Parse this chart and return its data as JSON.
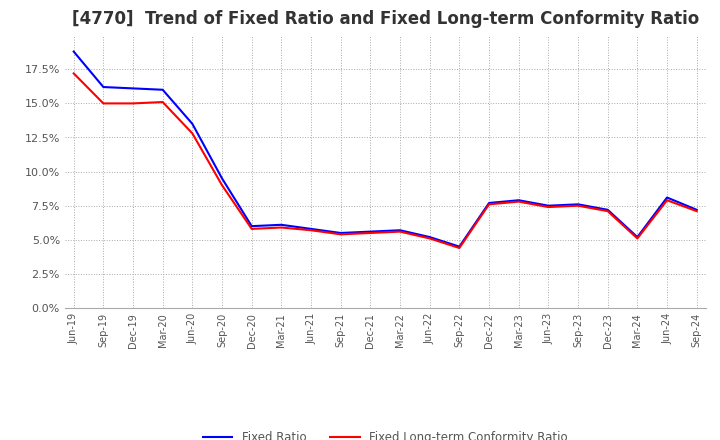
{
  "title": "[4770]  Trend of Fixed Ratio and Fixed Long-term Conformity Ratio",
  "title_fontsize": 12,
  "background_color": "#ffffff",
  "plot_background_color": "#ffffff",
  "grid_color": "#aaaaaa",
  "x_labels": [
    "Jun-19",
    "Sep-19",
    "Dec-19",
    "Mar-20",
    "Jun-20",
    "Sep-20",
    "Dec-20",
    "Mar-21",
    "Jun-21",
    "Sep-21",
    "Dec-21",
    "Mar-22",
    "Jun-22",
    "Sep-22",
    "Dec-22",
    "Mar-23",
    "Jun-23",
    "Sep-23",
    "Dec-23",
    "Mar-24",
    "Jun-24",
    "Sep-24"
  ],
  "fixed_ratio": [
    18.8,
    16.2,
    16.1,
    16.0,
    13.5,
    9.5,
    6.0,
    6.1,
    5.8,
    5.5,
    5.6,
    5.7,
    5.2,
    4.5,
    7.7,
    7.9,
    7.5,
    7.6,
    7.2,
    5.2,
    8.1,
    7.2
  ],
  "fixed_lt_ratio": [
    17.2,
    15.0,
    15.0,
    15.1,
    12.8,
    9.0,
    5.8,
    5.9,
    5.7,
    5.4,
    5.5,
    5.6,
    5.1,
    4.4,
    7.6,
    7.8,
    7.4,
    7.5,
    7.1,
    5.1,
    7.9,
    7.1
  ],
  "fixed_ratio_color": "#0000ff",
  "fixed_lt_ratio_color": "#ff0000",
  "ylim": [
    0.0,
    20.0
  ],
  "yticks": [
    0.0,
    2.5,
    5.0,
    7.5,
    10.0,
    12.5,
    15.0,
    17.5
  ],
  "legend_fixed": "Fixed Ratio",
  "legend_fixed_lt": "Fixed Long-term Conformity Ratio",
  "line_width": 1.5
}
